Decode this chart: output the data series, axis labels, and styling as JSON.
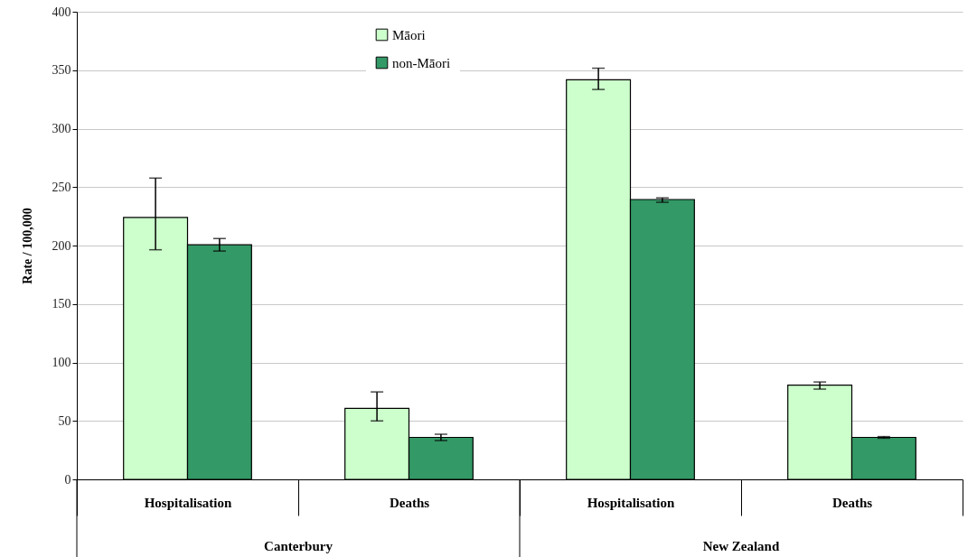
{
  "chart_data": {
    "type": "bar",
    "ylabel": "Rate / 100,000",
    "categories": [
      "Hospitalisation",
      "Deaths",
      "Hospitalisation",
      "Deaths"
    ],
    "series": [
      {
        "name": "Māori",
        "color": "#ccffcc",
        "values": [
          224,
          60.7,
          341.8,
          80.6
        ],
        "errors": [
          [
            196.4,
            257.7
          ],
          [
            50,
            74.8
          ],
          [
            333.5,
            351.7
          ],
          [
            77.2,
            83.3
          ]
        ]
      },
      {
        "name": "non-Māori",
        "color": "#339966",
        "values": [
          200.6,
          35.9,
          239.4,
          35.9
        ],
        "errors": [
          [
            195.3,
            206
          ],
          [
            33.2,
            38.6
          ],
          [
            237,
            240.8
          ],
          [
            35.2,
            36.6
          ]
        ]
      }
    ],
    "annotations": [
      "Canterbury",
      "New Zealand"
    ],
    "ylim": [
      0,
      400
    ],
    "yticks": [
      0,
      50,
      100,
      150,
      200,
      250,
      300,
      350,
      400
    ],
    "grid": "y",
    "legend": "top"
  }
}
